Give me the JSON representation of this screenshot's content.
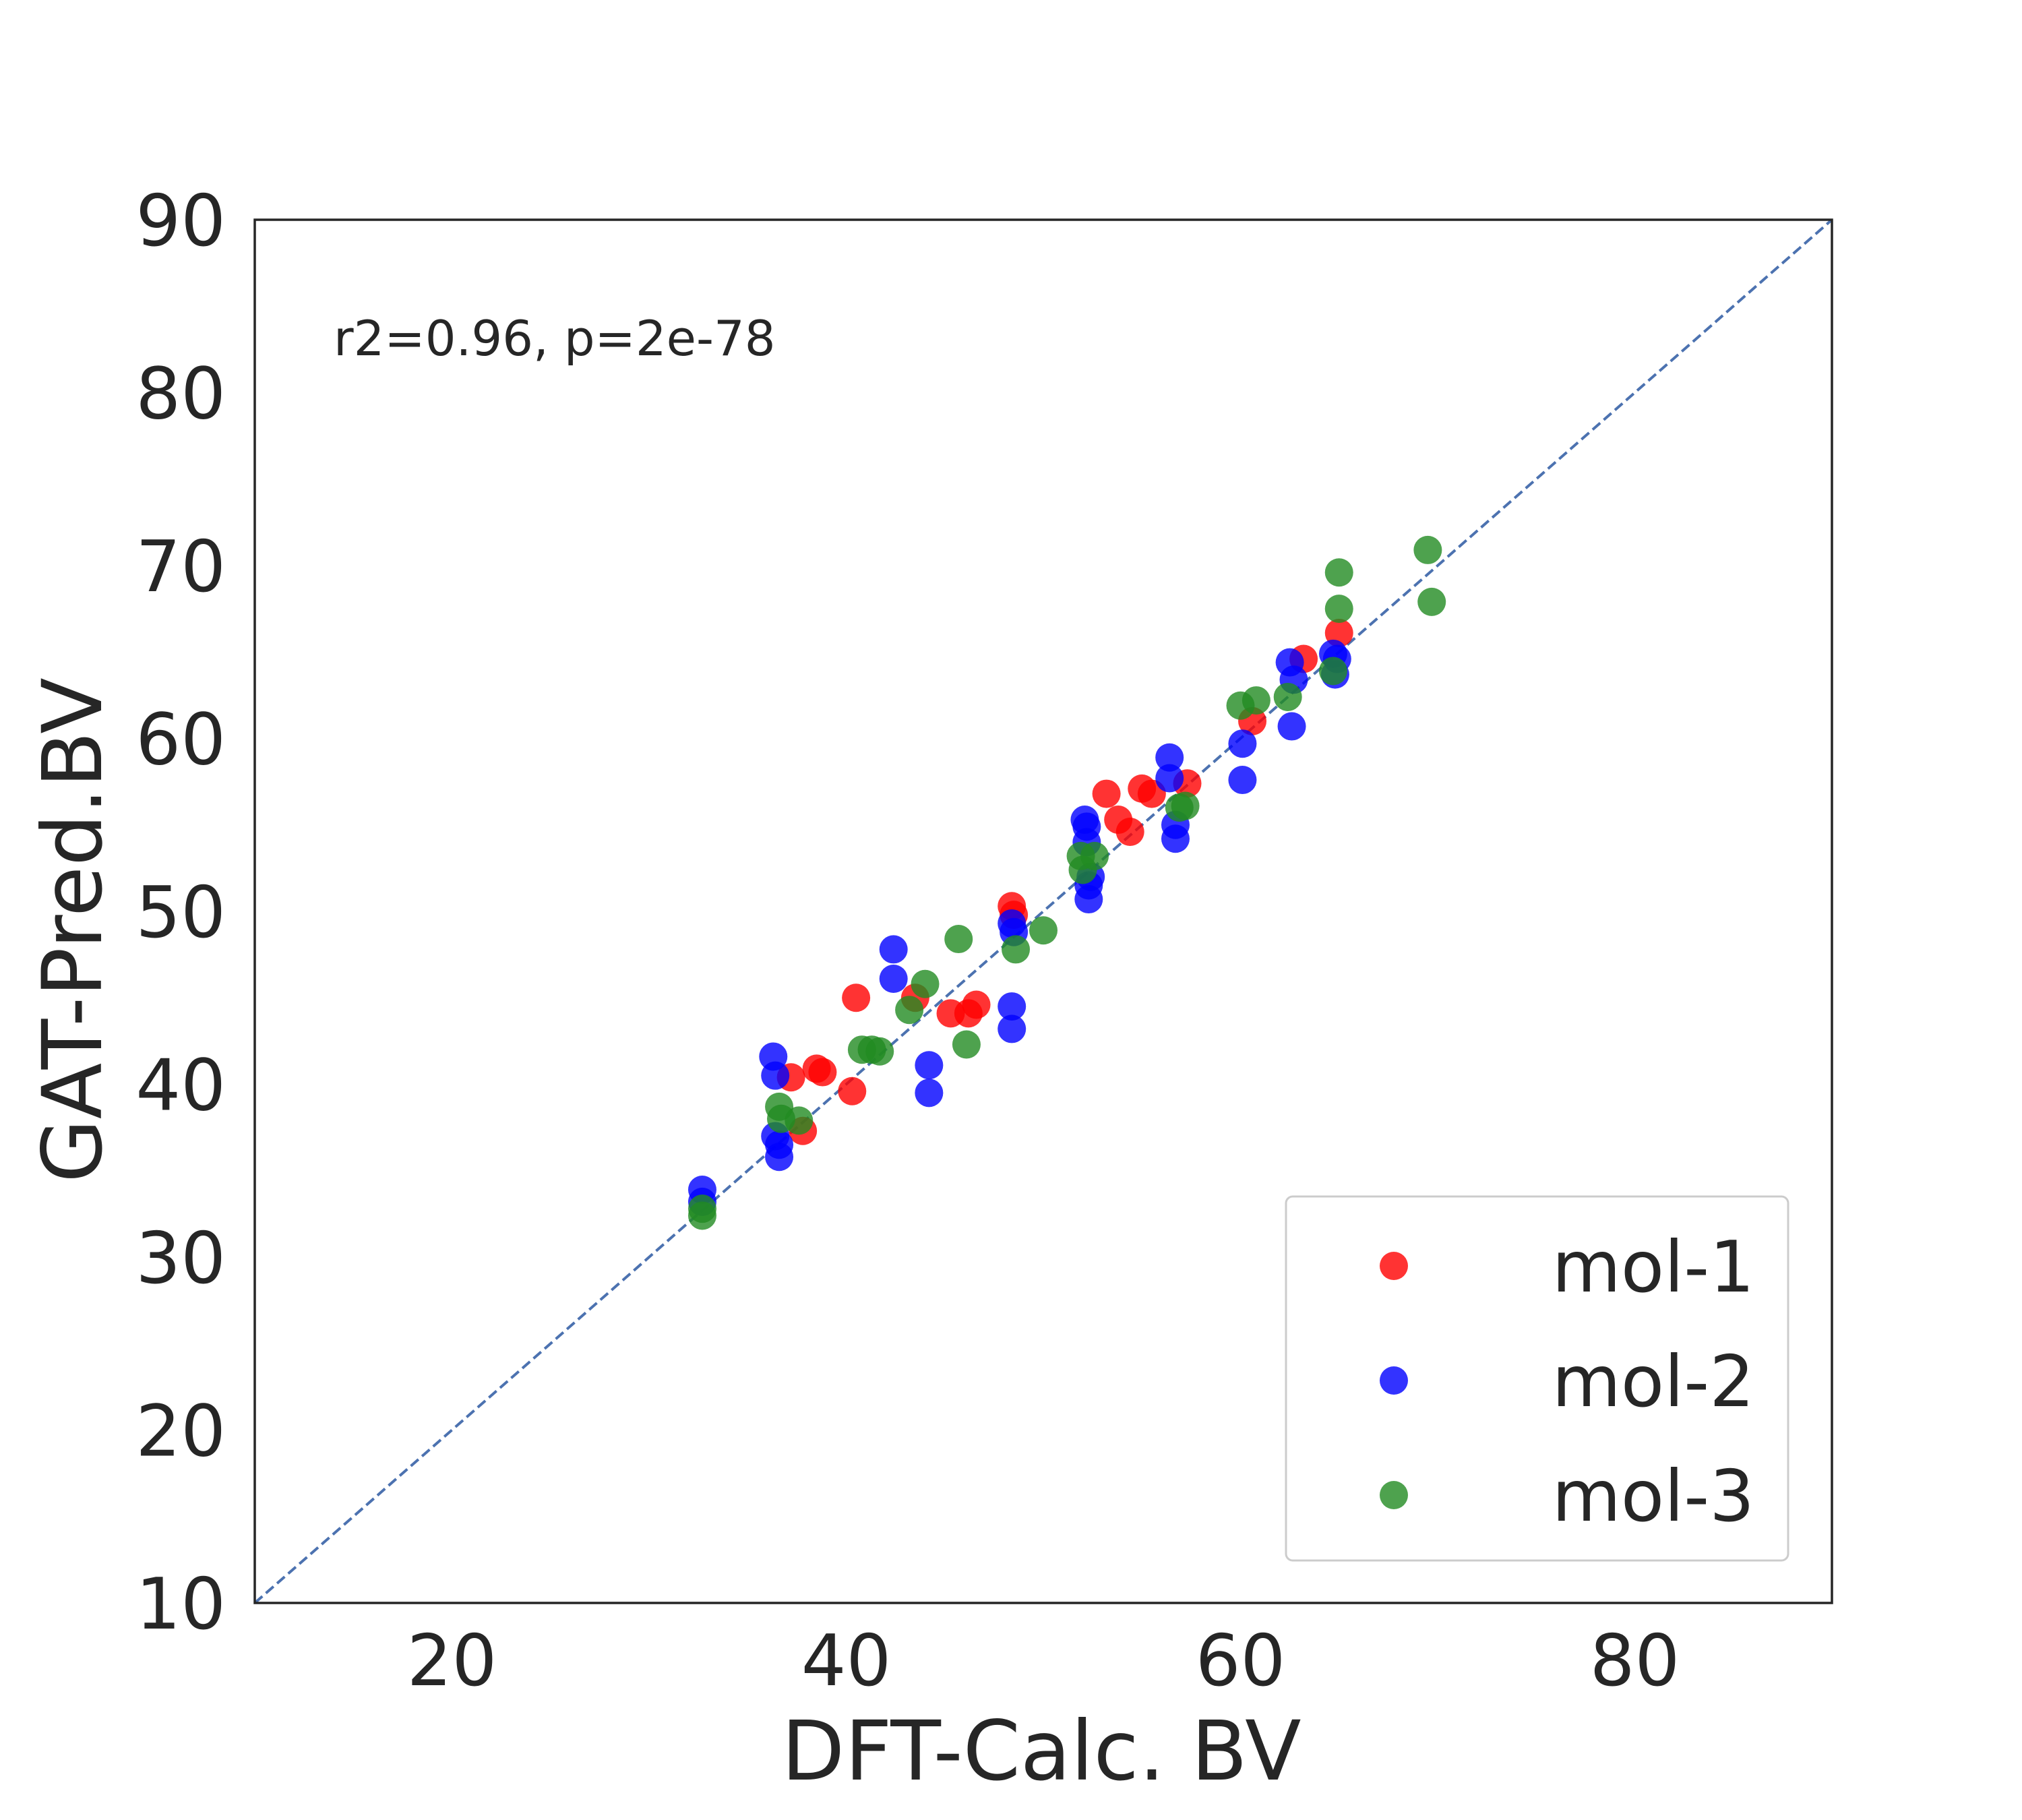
{
  "chart_data": {
    "type": "scatter",
    "xlabel": "DFT-Calc. BV",
    "ylabel": "GAT-Pred.BV",
    "xlim": [
      10,
      90
    ],
    "ylim": [
      10,
      90
    ],
    "x_ticks": [
      20,
      40,
      60,
      80
    ],
    "y_ticks": [
      10,
      20,
      30,
      40,
      50,
      60,
      70,
      80,
      90
    ],
    "grid": false,
    "legend_position": "bottom-right",
    "annotation": "r2=0.96, p=2e-78",
    "reference_line": {
      "type": "y=x",
      "style": "dashed",
      "color": "#4c72b0"
    },
    "series": [
      {
        "name": "mol-1",
        "color": "#ff0000",
        "points": [
          [
            37.2,
            40.4
          ],
          [
            38.5,
            40.9
          ],
          [
            38.8,
            40.7
          ],
          [
            37.8,
            37.3
          ],
          [
            40.3,
            39.6
          ],
          [
            40.5,
            45.0
          ],
          [
            43.5,
            45.0
          ],
          [
            45.3,
            44.1
          ],
          [
            46.2,
            44.1
          ],
          [
            46.6,
            44.6
          ],
          [
            48.4,
            50.3
          ],
          [
            48.5,
            49.8
          ],
          [
            53.2,
            56.8
          ],
          [
            53.8,
            55.3
          ],
          [
            54.4,
            54.6
          ],
          [
            55.0,
            57.1
          ],
          [
            55.5,
            56.8
          ],
          [
            57.3,
            57.4
          ],
          [
            60.6,
            61.0
          ],
          [
            63.2,
            64.6
          ],
          [
            65.0,
            66.1
          ]
        ]
      },
      {
        "name": "mol-2",
        "color": "#0000ff",
        "points": [
          [
            32.7,
            33.9
          ],
          [
            32.7,
            33.2
          ],
          [
            36.3,
            41.6
          ],
          [
            36.4,
            40.5
          ],
          [
            36.4,
            37.0
          ],
          [
            36.6,
            36.5
          ],
          [
            36.6,
            35.8
          ],
          [
            42.4,
            47.8
          ],
          [
            42.4,
            46.1
          ],
          [
            44.2,
            41.1
          ],
          [
            44.2,
            39.5
          ],
          [
            48.4,
            44.5
          ],
          [
            48.4,
            43.2
          ],
          [
            48.4,
            49.3
          ],
          [
            48.5,
            48.8
          ],
          [
            52.1,
            55.3
          ],
          [
            52.2,
            54.9
          ],
          [
            52.2,
            54.0
          ],
          [
            52.3,
            51.5
          ],
          [
            52.3,
            50.7
          ],
          [
            52.4,
            52.0
          ],
          [
            56.4,
            58.9
          ],
          [
            56.4,
            57.7
          ],
          [
            56.7,
            55.0
          ],
          [
            56.7,
            54.2
          ],
          [
            60.1,
            59.7
          ],
          [
            60.1,
            57.6
          ],
          [
            62.5,
            64.4
          ],
          [
            62.6,
            60.7
          ],
          [
            62.7,
            63.4
          ],
          [
            64.7,
            64.9
          ],
          [
            64.8,
            63.7
          ],
          [
            64.9,
            64.6
          ]
        ]
      },
      {
        "name": "mol-3",
        "color": "#228b22",
        "points": [
          [
            32.7,
            32.8
          ],
          [
            32.7,
            32.4
          ],
          [
            36.6,
            38.7
          ],
          [
            36.7,
            38.0
          ],
          [
            37.6,
            37.9
          ],
          [
            40.8,
            42.0
          ],
          [
            41.3,
            42.0
          ],
          [
            41.7,
            41.9
          ],
          [
            43.2,
            44.3
          ],
          [
            44.0,
            45.8
          ],
          [
            45.7,
            48.4
          ],
          [
            46.1,
            42.3
          ],
          [
            48.6,
            47.8
          ],
          [
            50.0,
            48.9
          ],
          [
            51.9,
            53.2
          ],
          [
            52.0,
            52.4
          ],
          [
            52.6,
            53.2
          ],
          [
            56.9,
            56.0
          ],
          [
            57.2,
            56.1
          ],
          [
            60.0,
            61.9
          ],
          [
            60.8,
            62.2
          ],
          [
            62.4,
            62.4
          ],
          [
            64.7,
            63.9
          ],
          [
            65.0,
            69.6
          ],
          [
            65.0,
            67.5
          ],
          [
            69.5,
            70.9
          ],
          [
            69.7,
            67.9
          ]
        ]
      }
    ]
  }
}
